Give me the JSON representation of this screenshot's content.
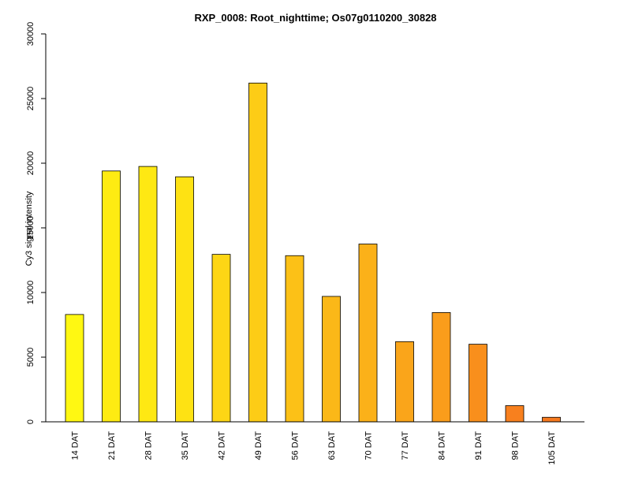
{
  "chart_data": {
    "type": "bar",
    "title": "RXP_0008: Root_nighttime; Os07g0110200_30828",
    "ylabel": "Cy3 signal intensity",
    "xlabel": "",
    "ylim": [
      0,
      30000
    ],
    "yticks": [
      0,
      5000,
      10000,
      15000,
      20000,
      25000,
      30000
    ],
    "categories": [
      "14 DAT",
      "21 DAT",
      "28 DAT",
      "35 DAT",
      "42 DAT",
      "49 DAT",
      "56 DAT",
      "63 DAT",
      "70 DAT",
      "77 DAT",
      "84 DAT",
      "91 DAT",
      "98 DAT",
      "105 DAT"
    ],
    "values": [
      8300,
      19400,
      19750,
      18950,
      12950,
      26200,
      12850,
      9700,
      13750,
      6200,
      8450,
      6000,
      1250,
      350
    ],
    "colors": [
      "#FFF812",
      "#FEEB12",
      "#FEE813",
      "#FEE213",
      "#FDD615",
      "#FDCC16",
      "#FCC117",
      "#FBB818",
      "#FBB119",
      "#FAA51A",
      "#FA9D1B",
      "#F98F1C",
      "#F8801E",
      "#F77A1F"
    ],
    "grid": false,
    "legend": "none"
  }
}
